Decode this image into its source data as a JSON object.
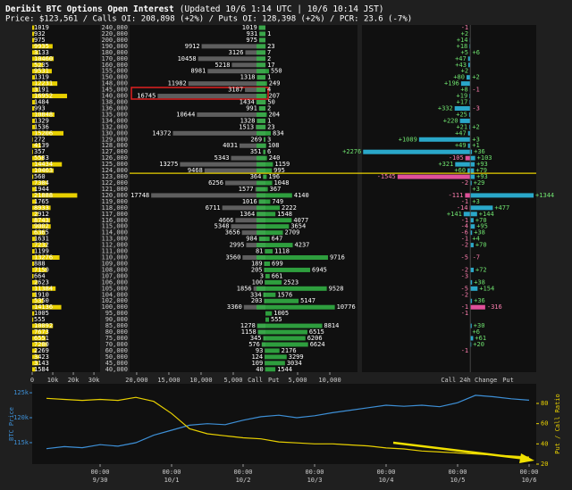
{
  "title": "Deribit BTC Options Open Interest",
  "updated": "(Updated 10/6 1:14 UTC | 10/6 10:14 JST)",
  "info": "Price: $123,561 / Calls OI: 208,898 (+2%) / Puts OI: 128,398 (+2%) / PCR: 23.6 (-7%)",
  "chart_data": [
    {
      "type": "total_bar",
      "color": "#e8d000",
      "values": [
        1019,
        932,
        975,
        9935,
        3133,
        10460,
        5235,
        9531,
        1319,
        12231,
        3191,
        16952,
        1484,
        993,
        10848,
        1329,
        1536,
        15206,
        272,
        4139,
        357,
        5583,
        14434,
        10463,
        560,
        7304,
        1944,
        21888,
        1765,
        8933,
        2912,
        8743,
        9002,
        6365,
        1631,
        7232,
        1199,
        13276,
        888,
        7150,
        664,
        2623,
        11384,
        1910,
        5350,
        14136,
        1005,
        555,
        10092,
        7673,
        6551,
        7200,
        2269,
        3423,
        3143,
        1584
      ],
      "xlim": [
        0,
        33000
      ],
      "xticks": [
        0,
        {
          "value": 10000,
          "label": "10k"
        },
        {
          "value": 20000,
          "label": "20k"
        },
        {
          "value": 30000,
          "label": "30k"
        }
      ]
    },
    {
      "type": "diverging_bar",
      "categories": [
        "240,000",
        "220,000",
        "200,000",
        "190,000",
        "180,000",
        "170,000",
        "160,000",
        "155,000",
        "150,000",
        "148,000",
        "145,000",
        "140,000",
        "138,000",
        "136,000",
        "135,000",
        "134,000",
        "132,000",
        "130,000",
        "129,000",
        "128,000",
        "127,000",
        "126,000",
        "125,000",
        "124,000",
        "123,000",
        "122,000",
        "121,000",
        "120,000",
        "119,000",
        "118,000",
        "117,000",
        "116,000",
        "115,000",
        "114,000",
        "113,000",
        "112,000",
        "111,000",
        "110,000",
        "109,000",
        "108,000",
        "107,000",
        "106,000",
        "105,000",
        "104,000",
        "102,000",
        "100,000",
        "95,000",
        "90,000",
        "85,000",
        "80,000",
        "75,000",
        "70,000",
        "60,000",
        "50,000",
        "45,000",
        "40,000"
      ],
      "series": [
        {
          "name": "Call",
          "color": "#5e5e5e",
          "values": [
            1019,
            931,
            975,
            9912,
            3126,
            10458,
            5218,
            8981,
            1318,
            11982,
            3187,
            16745,
            1434,
            991,
            10644,
            1328,
            1513,
            14372,
            269,
            4031,
            351,
            5343,
            13275,
            9468,
            364,
            6256,
            1577,
            17748,
            1016,
            6711,
            1364,
            4666,
            5348,
            3656,
            984,
            2995,
            81,
            3560,
            189,
            205,
            3,
            100,
            1856,
            334,
            203,
            3360,
            0,
            0,
            1278,
            1158,
            345,
            576,
            93,
            124,
            109,
            40
          ]
        },
        {
          "name": "Put",
          "color": "#2e9e3e",
          "values": [
            0,
            1,
            0,
            23,
            7,
            2,
            17,
            550,
            1,
            249,
            4,
            207,
            50,
            2,
            204,
            1,
            23,
            834,
            3,
            108,
            6,
            240,
            1159,
            995,
            196,
            1048,
            367,
            4140,
            749,
            2222,
            1548,
            4077,
            3654,
            2709,
            647,
            4237,
            1118,
            9716,
            699,
            6945,
            661,
            2523,
            9528,
            1576,
            5147,
            10776,
            1005,
            555,
            8814,
            6515,
            6206,
            6624,
            2176,
            3299,
            3034,
            1544
          ]
        }
      ],
      "xlim_call": [
        0,
        21100
      ],
      "xlim_put": [
        0,
        14300
      ],
      "xticks_call": [
        {
          "value": 20000,
          "label": "20,000"
        },
        {
          "value": 15000,
          "label": "15,000"
        },
        {
          "value": 10000,
          "label": "10,000"
        },
        {
          "value": 5000,
          "label": "5,000"
        }
      ],
      "xticks_put": [
        {
          "value": 5000,
          "label": "5,000"
        },
        {
          "value": 10000,
          "label": "10,000"
        }
      ],
      "price": 123561,
      "price_color": "#e8d000"
    },
    {
      "type": "change_bar",
      "title": "24h Change",
      "xlim": [
        -2300,
        1400
      ],
      "positive_color": "#2aa7c9",
      "negative_color": "#e0509a",
      "series": [
        {
          "name": "Call",
          "values": [
            -1,
            2,
            14,
            18,
            5,
            47,
            43,
            2,
            80,
            196,
            8,
            19,
            17,
            332,
            25,
            220,
            21,
            47,
            1089,
            49,
            2276,
            -105,
            321,
            60,
            -1545,
            -2,
            null,
            -111,
            -1,
            -14,
            141,
            -1,
            -4,
            -6,
            -1,
            -2,
            null,
            -5,
            null,
            -2,
            -3,
            null,
            -5,
            -2,
            null,
            -1,
            -1,
            null,
            null,
            null,
            null,
            null,
            -1,
            null,
            null,
            null
          ],
          "value_labels": [
            "-1",
            "+2",
            "+14",
            "+18",
            "+5",
            "+47",
            "+43",
            "+2",
            "+80",
            "+196",
            "+8",
            "+19",
            "+17",
            "+332",
            "+25",
            "+220",
            "+21",
            "+47",
            "+1089",
            "+49",
            "+2276",
            "-105",
            "+321",
            "+60",
            "-1545",
            "-2",
            null,
            "-111",
            "-1",
            "-14",
            "+141",
            "-1",
            "-4",
            "-6",
            "-1",
            "-2",
            null,
            "-5",
            null,
            "-2",
            "-3",
            null,
            "-5",
            "-2",
            null,
            "-1",
            "-1",
            null,
            null,
            null,
            null,
            null,
            "-1",
            null,
            null,
            null
          ]
        },
        {
          "name": "Put",
          "values": [
            null,
            null,
            null,
            null,
            6,
            null,
            null,
            null,
            2,
            null,
            -1,
            null,
            null,
            -3,
            null,
            null,
            2,
            null,
            3,
            1,
            36,
            103,
            93,
            79,
            93,
            29,
            3,
            1344,
            3,
            477,
            144,
            70,
            95,
            38,
            4,
            70,
            null,
            -7,
            null,
            72,
            null,
            38,
            154,
            null,
            36,
            -316,
            null,
            null,
            30,
            6,
            61,
            20,
            null,
            null,
            null,
            null
          ],
          "value_labels": [
            null,
            null,
            null,
            null,
            "+6",
            null,
            null,
            null,
            "+2",
            null,
            "-1",
            null,
            null,
            "-3",
            null,
            null,
            "+2",
            null,
            "+3",
            "+1",
            "+36",
            "+103",
            "+93",
            "+79",
            "+93",
            "+29",
            "+3",
            "+1344",
            "+3",
            "+477",
            "+144",
            "+70",
            "+95",
            "+38",
            "+4",
            "+70",
            null,
            "-7",
            null,
            "+72",
            null,
            "+38",
            "+154",
            null,
            "+36",
            "-316",
            null,
            null,
            "+30",
            "+6",
            "+61",
            "+20",
            null,
            null,
            null,
            null
          ]
        }
      ]
    },
    {
      "type": "line",
      "x": [
        6,
        12,
        18,
        24,
        30,
        36,
        42,
        48,
        54,
        60,
        66,
        72,
        78,
        84,
        90,
        96,
        102,
        108,
        114,
        120,
        126,
        132,
        138,
        144,
        150,
        156,
        162,
        168
      ],
      "series": [
        {
          "name": "BTC Price",
          "color": "#3d8fd6",
          "values": [
            113800,
            114200,
            114000,
            114600,
            114300,
            115000,
            116500,
            117500,
            118500,
            118800,
            118600,
            119500,
            120200,
            120500,
            120000,
            120400,
            121000,
            121500,
            122000,
            122500,
            122300,
            122500,
            122200,
            123000,
            124500,
            124200,
            123800,
            123500
          ]
        },
        {
          "name": "Put / Call Ratio",
          "color": "#e8d000",
          "axis": "y2",
          "values": [
            85,
            84,
            83,
            84,
            83,
            86,
            82,
            70,
            55,
            50,
            48,
            46,
            45,
            42,
            41,
            40,
            40,
            39,
            38,
            36,
            35,
            33,
            32,
            31,
            30,
            29,
            28,
            27
          ]
        }
      ],
      "xlim": [
        1.2,
        170.4
      ],
      "xticks": [
        {
          "value": 24,
          "label": "00:00\n9/30"
        },
        {
          "value": 48,
          "label": "00:00\n10/1"
        },
        {
          "value": 72,
          "label": "00:00\n10/2"
        },
        {
          "value": 96,
          "label": "00:00\n10/3"
        },
        {
          "value": 120,
          "label": "00:00\n10/4"
        },
        {
          "value": 144,
          "label": "00:00\n10/5"
        },
        {
          "value": 168,
          "label": "00:00\n10/6"
        }
      ],
      "ylim": [
        110700,
        126800
      ],
      "yticks": [
        {
          "value": 115000,
          "label": "115k"
        },
        {
          "value": 120000,
          "label": "120k"
        },
        {
          "value": 125000,
          "label": "125k"
        }
      ],
      "y2lim": [
        20,
        99.4
      ],
      "y2ticks": [
        20,
        40,
        60,
        80
      ]
    }
  ]
}
